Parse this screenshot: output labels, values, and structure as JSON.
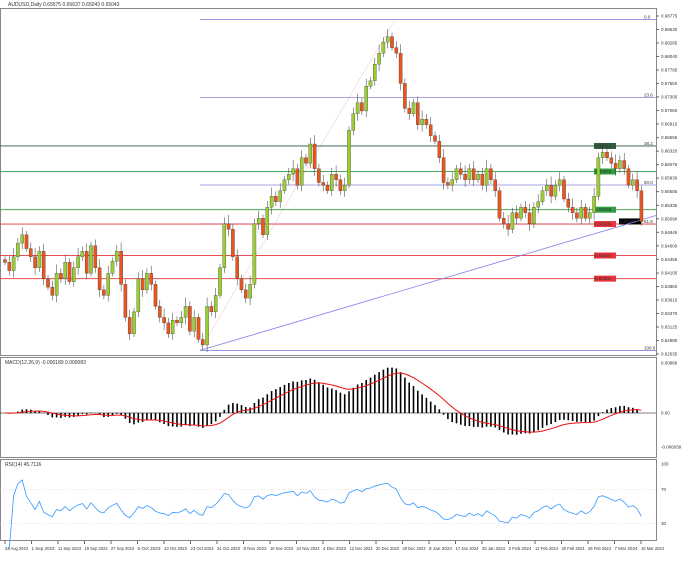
{
  "header": {
    "title": "AUDUSD,Daily  0.65575 0.65637 0.65043 0.65043"
  },
  "colors": {
    "bull": "#9acd32",
    "bear": "#e8551e",
    "fib": "#8888dd",
    "trend": "#8080ee",
    "green_level": "#2e9e3e",
    "red_level": "#e8343a",
    "macd_signal": "#ee1111",
    "rsi": "#3399ff"
  },
  "chart_data": [
    {
      "type": "candlestick",
      "symbol": "AUDUSD",
      "timeframe": "Daily",
      "start_date": "24 Aug 2023",
      "close": [
        0.643,
        0.6415,
        0.644,
        0.6465,
        0.648,
        0.6455,
        0.644,
        0.642,
        0.645,
        0.64,
        0.6385,
        0.637,
        0.641,
        0.64,
        0.643,
        0.6395,
        0.642,
        0.644,
        0.645,
        0.641,
        0.646,
        0.642,
        0.638,
        0.637,
        0.641,
        0.6432,
        0.645,
        0.639,
        0.633,
        0.63,
        0.634,
        0.64,
        0.638,
        0.641,
        0.639,
        0.635,
        0.633,
        0.632,
        0.63,
        0.6325,
        0.632,
        0.633,
        0.635,
        0.6305,
        0.633,
        0.629,
        0.628,
        0.635,
        0.634,
        0.637,
        0.642,
        0.65,
        0.649,
        0.644,
        0.64,
        0.638,
        0.6365,
        0.639,
        0.65,
        0.651,
        0.648,
        0.653,
        0.655,
        0.654,
        0.656,
        0.658,
        0.659,
        0.66,
        0.657,
        0.662,
        0.661,
        0.6645,
        0.66,
        0.6575,
        0.657,
        0.656,
        0.659,
        0.658,
        0.656,
        0.657,
        0.667,
        0.67,
        0.672,
        0.6705,
        0.675,
        0.676,
        0.679,
        0.681,
        0.683,
        0.684,
        0.682,
        0.681,
        0.6755,
        0.671,
        0.67,
        0.672,
        0.668,
        0.669,
        0.668,
        0.666,
        0.665,
        0.662,
        0.6575,
        0.657,
        0.658,
        0.66,
        0.659,
        0.658,
        0.66,
        0.658,
        0.659,
        0.657,
        0.66,
        0.658,
        0.656,
        0.651,
        0.65,
        0.649,
        0.652,
        0.651,
        0.653,
        0.652,
        0.65,
        0.653,
        0.654,
        0.656,
        0.657,
        0.655,
        0.657,
        0.658,
        0.6545,
        0.653,
        0.652,
        0.651,
        0.653,
        0.651,
        0.652,
        0.655,
        0.662,
        0.663,
        0.662,
        0.661,
        0.66,
        0.6615,
        0.66,
        0.657,
        0.658,
        0.656,
        0.6504
      ],
      "ylim": [
        0.62635,
        0.68775
      ],
      "price_ticks": [
        "0.68775",
        "0.68530",
        "0.68285",
        "0.68040",
        "0.67795",
        "0.67550",
        "0.67305",
        "0.67060",
        "0.66815",
        "0.66565",
        "0.66320",
        "0.66075",
        "0.65830",
        "0.65585",
        "0.65335",
        "0.65090",
        "0.64845",
        "0.64600",
        "0.64355",
        "0.64105",
        "0.63860",
        "0.63615",
        "0.63370",
        "0.63125",
        "0.62880",
        "0.62635"
      ],
      "date_ticks": [
        "24 Aug 2023",
        "1 Sep 2023",
        "11 Sep 2023",
        "19 Sep 2023",
        "27 Sep 2023",
        "5 Oct 2023",
        "13 Oct 2023",
        "23 Oct 2023",
        "31 Oct 2023",
        "8 Nov 2023",
        "16 Nov 2023",
        "24 Nov 2023",
        "4 Dec 2023",
        "12 Dec 2023",
        "20 Dec 2023",
        "28 Dec 2023",
        "8 Jan 2024",
        "17 Jan 2024",
        "25 Jan 2024",
        "2 Feb 2024",
        "12 Feb 2024",
        "20 Feb 2024",
        "28 Feb 2024",
        "7 Mar 2024",
        "15 Mar 2024"
      ],
      "fibonacci": {
        "low": 0.627,
        "high": 0.6871,
        "levels": [
          {
            "label": "0.0",
            "value": 0.6871
          },
          {
            "label": "23.6",
            "value": 0.67292
          },
          {
            "label": "38.2",
            "value": 0.66414
          },
          {
            "label": "50.0",
            "value": 0.65705
          },
          {
            "label": "61.8",
            "value": 0.64996
          },
          {
            "label": "100.0",
            "value": 0.627
          }
        ]
      },
      "horizontal_levels": [
        {
          "value": 0.66414,
          "label": "0.66414",
          "color": "dark"
        },
        {
          "value": 0.6595,
          "label": "0.65950",
          "color": "green"
        },
        {
          "value": 0.65256,
          "label": "0.65256",
          "color": "green"
        },
        {
          "value": 0.64996,
          "label": "0.64996",
          "color": "red"
        },
        {
          "value": 0.64424,
          "label": "0.64424",
          "color": "red"
        },
        {
          "value": 0.64004,
          "label": "0.64004",
          "color": "red"
        }
      ],
      "current_price": "0.65043",
      "trendline": [
        {
          "date": "26 Oct 2023",
          "value": 0.627
        },
        {
          "date": "19 Mar 2024",
          "value": 0.6515
        }
      ]
    },
    {
      "type": "bar",
      "name": "MACD(12,26,9) -0.000189 0.000083",
      "params": [
        12,
        26,
        9
      ],
      "ticks": [
        "0.00886",
        "0.00",
        "-0.006039"
      ],
      "ylim": [
        -0.006039,
        0.00886
      ]
    },
    {
      "type": "line",
      "name": "RSI(14) 45.7116",
      "period": 14,
      "ticks": [
        "100",
        "70",
        "30"
      ],
      "ylim": [
        0,
        100
      ]
    }
  ]
}
